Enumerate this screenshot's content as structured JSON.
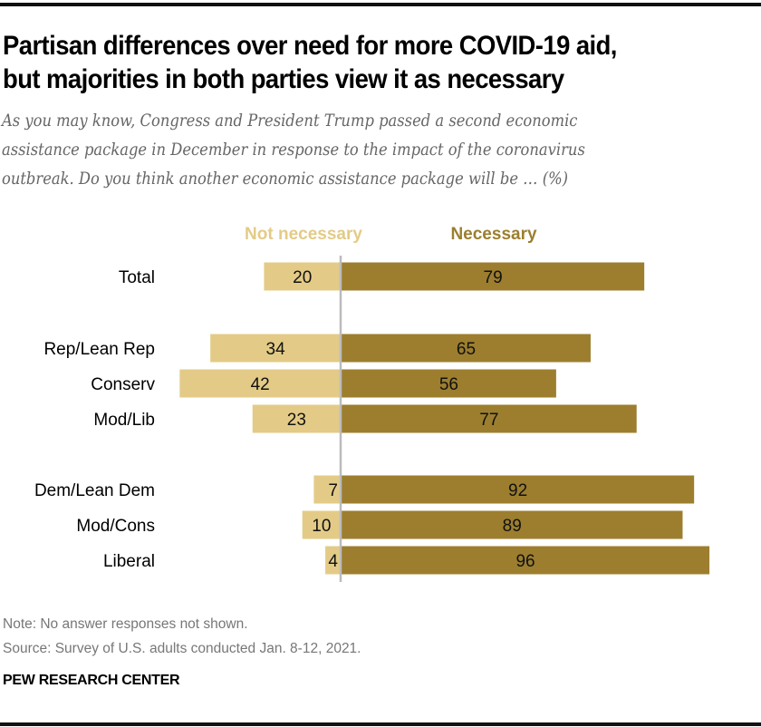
{
  "header": {
    "title_line1": "Partisan differences over need for more COVID-19 aid,",
    "title_line2": "but majorities in both parties view it as necessary",
    "subtitle_line1": "As you may know, Congress and President Trump passed a second economic",
    "subtitle_line2": "assistance package in December in response to the impact of the coronavirus",
    "subtitle_line3": "outbreak. Do you think another economic assistance package will be … (%)"
  },
  "colors": {
    "not_necessary": "#e3cb87",
    "necessary": "#9c7e2e",
    "axis": "#bbbbbb"
  },
  "chart_data": {
    "type": "bar",
    "orientation": "horizontal-diverging",
    "title": "Partisan differences over need for more COVID-19 aid, but majorities in both parties view it as necessary",
    "xlabel": "",
    "ylabel": "",
    "unit": "%",
    "xlim": [
      -45,
      100
    ],
    "grid": false,
    "legend_position": "top",
    "categories": [
      "Total",
      "Rep/Lean Rep",
      "Conserv",
      "Mod/Lib",
      "Dem/Lean Dem",
      "Mod/Cons",
      "Liberal"
    ],
    "groups": [
      [
        "Total"
      ],
      [
        "Rep/Lean Rep",
        "Conserv",
        "Mod/Lib"
      ],
      [
        "Dem/Lean Dem",
        "Mod/Cons",
        "Liberal"
      ]
    ],
    "series": [
      {
        "name": "Not necessary",
        "direction": "left",
        "values": [
          20,
          34,
          42,
          23,
          7,
          10,
          4
        ]
      },
      {
        "name": "Necessary",
        "direction": "right",
        "values": [
          79,
          65,
          56,
          77,
          92,
          89,
          96
        ]
      }
    ]
  },
  "footer": {
    "note": "Note: No answer responses not shown.",
    "source": "Source: Survey of U.S. adults conducted Jan. 8-12, 2021.",
    "brand": "PEW RESEARCH CENTER"
  }
}
